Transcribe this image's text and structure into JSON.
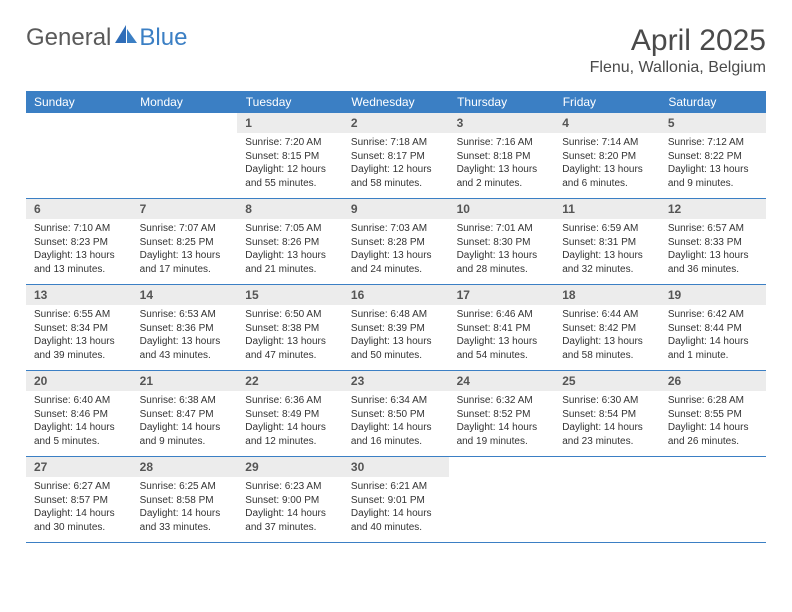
{
  "brand": {
    "part1": "General",
    "part2": "Blue"
  },
  "title": "April 2025",
  "location": "Flenu, Wallonia, Belgium",
  "colors": {
    "header_bg": "#3b7fc4",
    "header_text": "#ffffff",
    "daynum_bg": "#ececec",
    "daynum_text": "#555555",
    "border": "#3b7fc4",
    "body_text": "#333333",
    "page_bg": "#ffffff",
    "logo_gray": "#5a5a5a",
    "logo_blue": "#3b7fc4"
  },
  "typography": {
    "month_title_fontsize": 30,
    "location_fontsize": 16,
    "weekday_fontsize": 12,
    "daynum_fontsize": 12,
    "info_fontsize": 10
  },
  "weekdays": [
    "Sunday",
    "Monday",
    "Tuesday",
    "Wednesday",
    "Thursday",
    "Friday",
    "Saturday"
  ],
  "weeks": [
    [
      null,
      null,
      {
        "n": "1",
        "sunrise": "Sunrise: 7:20 AM",
        "sunset": "Sunset: 8:15 PM",
        "daylight": "Daylight: 12 hours and 55 minutes."
      },
      {
        "n": "2",
        "sunrise": "Sunrise: 7:18 AM",
        "sunset": "Sunset: 8:17 PM",
        "daylight": "Daylight: 12 hours and 58 minutes."
      },
      {
        "n": "3",
        "sunrise": "Sunrise: 7:16 AM",
        "sunset": "Sunset: 8:18 PM",
        "daylight": "Daylight: 13 hours and 2 minutes."
      },
      {
        "n": "4",
        "sunrise": "Sunrise: 7:14 AM",
        "sunset": "Sunset: 8:20 PM",
        "daylight": "Daylight: 13 hours and 6 minutes."
      },
      {
        "n": "5",
        "sunrise": "Sunrise: 7:12 AM",
        "sunset": "Sunset: 8:22 PM",
        "daylight": "Daylight: 13 hours and 9 minutes."
      }
    ],
    [
      {
        "n": "6",
        "sunrise": "Sunrise: 7:10 AM",
        "sunset": "Sunset: 8:23 PM",
        "daylight": "Daylight: 13 hours and 13 minutes."
      },
      {
        "n": "7",
        "sunrise": "Sunrise: 7:07 AM",
        "sunset": "Sunset: 8:25 PM",
        "daylight": "Daylight: 13 hours and 17 minutes."
      },
      {
        "n": "8",
        "sunrise": "Sunrise: 7:05 AM",
        "sunset": "Sunset: 8:26 PM",
        "daylight": "Daylight: 13 hours and 21 minutes."
      },
      {
        "n": "9",
        "sunrise": "Sunrise: 7:03 AM",
        "sunset": "Sunset: 8:28 PM",
        "daylight": "Daylight: 13 hours and 24 minutes."
      },
      {
        "n": "10",
        "sunrise": "Sunrise: 7:01 AM",
        "sunset": "Sunset: 8:30 PM",
        "daylight": "Daylight: 13 hours and 28 minutes."
      },
      {
        "n": "11",
        "sunrise": "Sunrise: 6:59 AM",
        "sunset": "Sunset: 8:31 PM",
        "daylight": "Daylight: 13 hours and 32 minutes."
      },
      {
        "n": "12",
        "sunrise": "Sunrise: 6:57 AM",
        "sunset": "Sunset: 8:33 PM",
        "daylight": "Daylight: 13 hours and 36 minutes."
      }
    ],
    [
      {
        "n": "13",
        "sunrise": "Sunrise: 6:55 AM",
        "sunset": "Sunset: 8:34 PM",
        "daylight": "Daylight: 13 hours and 39 minutes."
      },
      {
        "n": "14",
        "sunrise": "Sunrise: 6:53 AM",
        "sunset": "Sunset: 8:36 PM",
        "daylight": "Daylight: 13 hours and 43 minutes."
      },
      {
        "n": "15",
        "sunrise": "Sunrise: 6:50 AM",
        "sunset": "Sunset: 8:38 PM",
        "daylight": "Daylight: 13 hours and 47 minutes."
      },
      {
        "n": "16",
        "sunrise": "Sunrise: 6:48 AM",
        "sunset": "Sunset: 8:39 PM",
        "daylight": "Daylight: 13 hours and 50 minutes."
      },
      {
        "n": "17",
        "sunrise": "Sunrise: 6:46 AM",
        "sunset": "Sunset: 8:41 PM",
        "daylight": "Daylight: 13 hours and 54 minutes."
      },
      {
        "n": "18",
        "sunrise": "Sunrise: 6:44 AM",
        "sunset": "Sunset: 8:42 PM",
        "daylight": "Daylight: 13 hours and 58 minutes."
      },
      {
        "n": "19",
        "sunrise": "Sunrise: 6:42 AM",
        "sunset": "Sunset: 8:44 PM",
        "daylight": "Daylight: 14 hours and 1 minute."
      }
    ],
    [
      {
        "n": "20",
        "sunrise": "Sunrise: 6:40 AM",
        "sunset": "Sunset: 8:46 PM",
        "daylight": "Daylight: 14 hours and 5 minutes."
      },
      {
        "n": "21",
        "sunrise": "Sunrise: 6:38 AM",
        "sunset": "Sunset: 8:47 PM",
        "daylight": "Daylight: 14 hours and 9 minutes."
      },
      {
        "n": "22",
        "sunrise": "Sunrise: 6:36 AM",
        "sunset": "Sunset: 8:49 PM",
        "daylight": "Daylight: 14 hours and 12 minutes."
      },
      {
        "n": "23",
        "sunrise": "Sunrise: 6:34 AM",
        "sunset": "Sunset: 8:50 PM",
        "daylight": "Daylight: 14 hours and 16 minutes."
      },
      {
        "n": "24",
        "sunrise": "Sunrise: 6:32 AM",
        "sunset": "Sunset: 8:52 PM",
        "daylight": "Daylight: 14 hours and 19 minutes."
      },
      {
        "n": "25",
        "sunrise": "Sunrise: 6:30 AM",
        "sunset": "Sunset: 8:54 PM",
        "daylight": "Daylight: 14 hours and 23 minutes."
      },
      {
        "n": "26",
        "sunrise": "Sunrise: 6:28 AM",
        "sunset": "Sunset: 8:55 PM",
        "daylight": "Daylight: 14 hours and 26 minutes."
      }
    ],
    [
      {
        "n": "27",
        "sunrise": "Sunrise: 6:27 AM",
        "sunset": "Sunset: 8:57 PM",
        "daylight": "Daylight: 14 hours and 30 minutes."
      },
      {
        "n": "28",
        "sunrise": "Sunrise: 6:25 AM",
        "sunset": "Sunset: 8:58 PM",
        "daylight": "Daylight: 14 hours and 33 minutes."
      },
      {
        "n": "29",
        "sunrise": "Sunrise: 6:23 AM",
        "sunset": "Sunset: 9:00 PM",
        "daylight": "Daylight: 14 hours and 37 minutes."
      },
      {
        "n": "30",
        "sunrise": "Sunrise: 6:21 AM",
        "sunset": "Sunset: 9:01 PM",
        "daylight": "Daylight: 14 hours and 40 minutes."
      },
      null,
      null,
      null
    ]
  ]
}
